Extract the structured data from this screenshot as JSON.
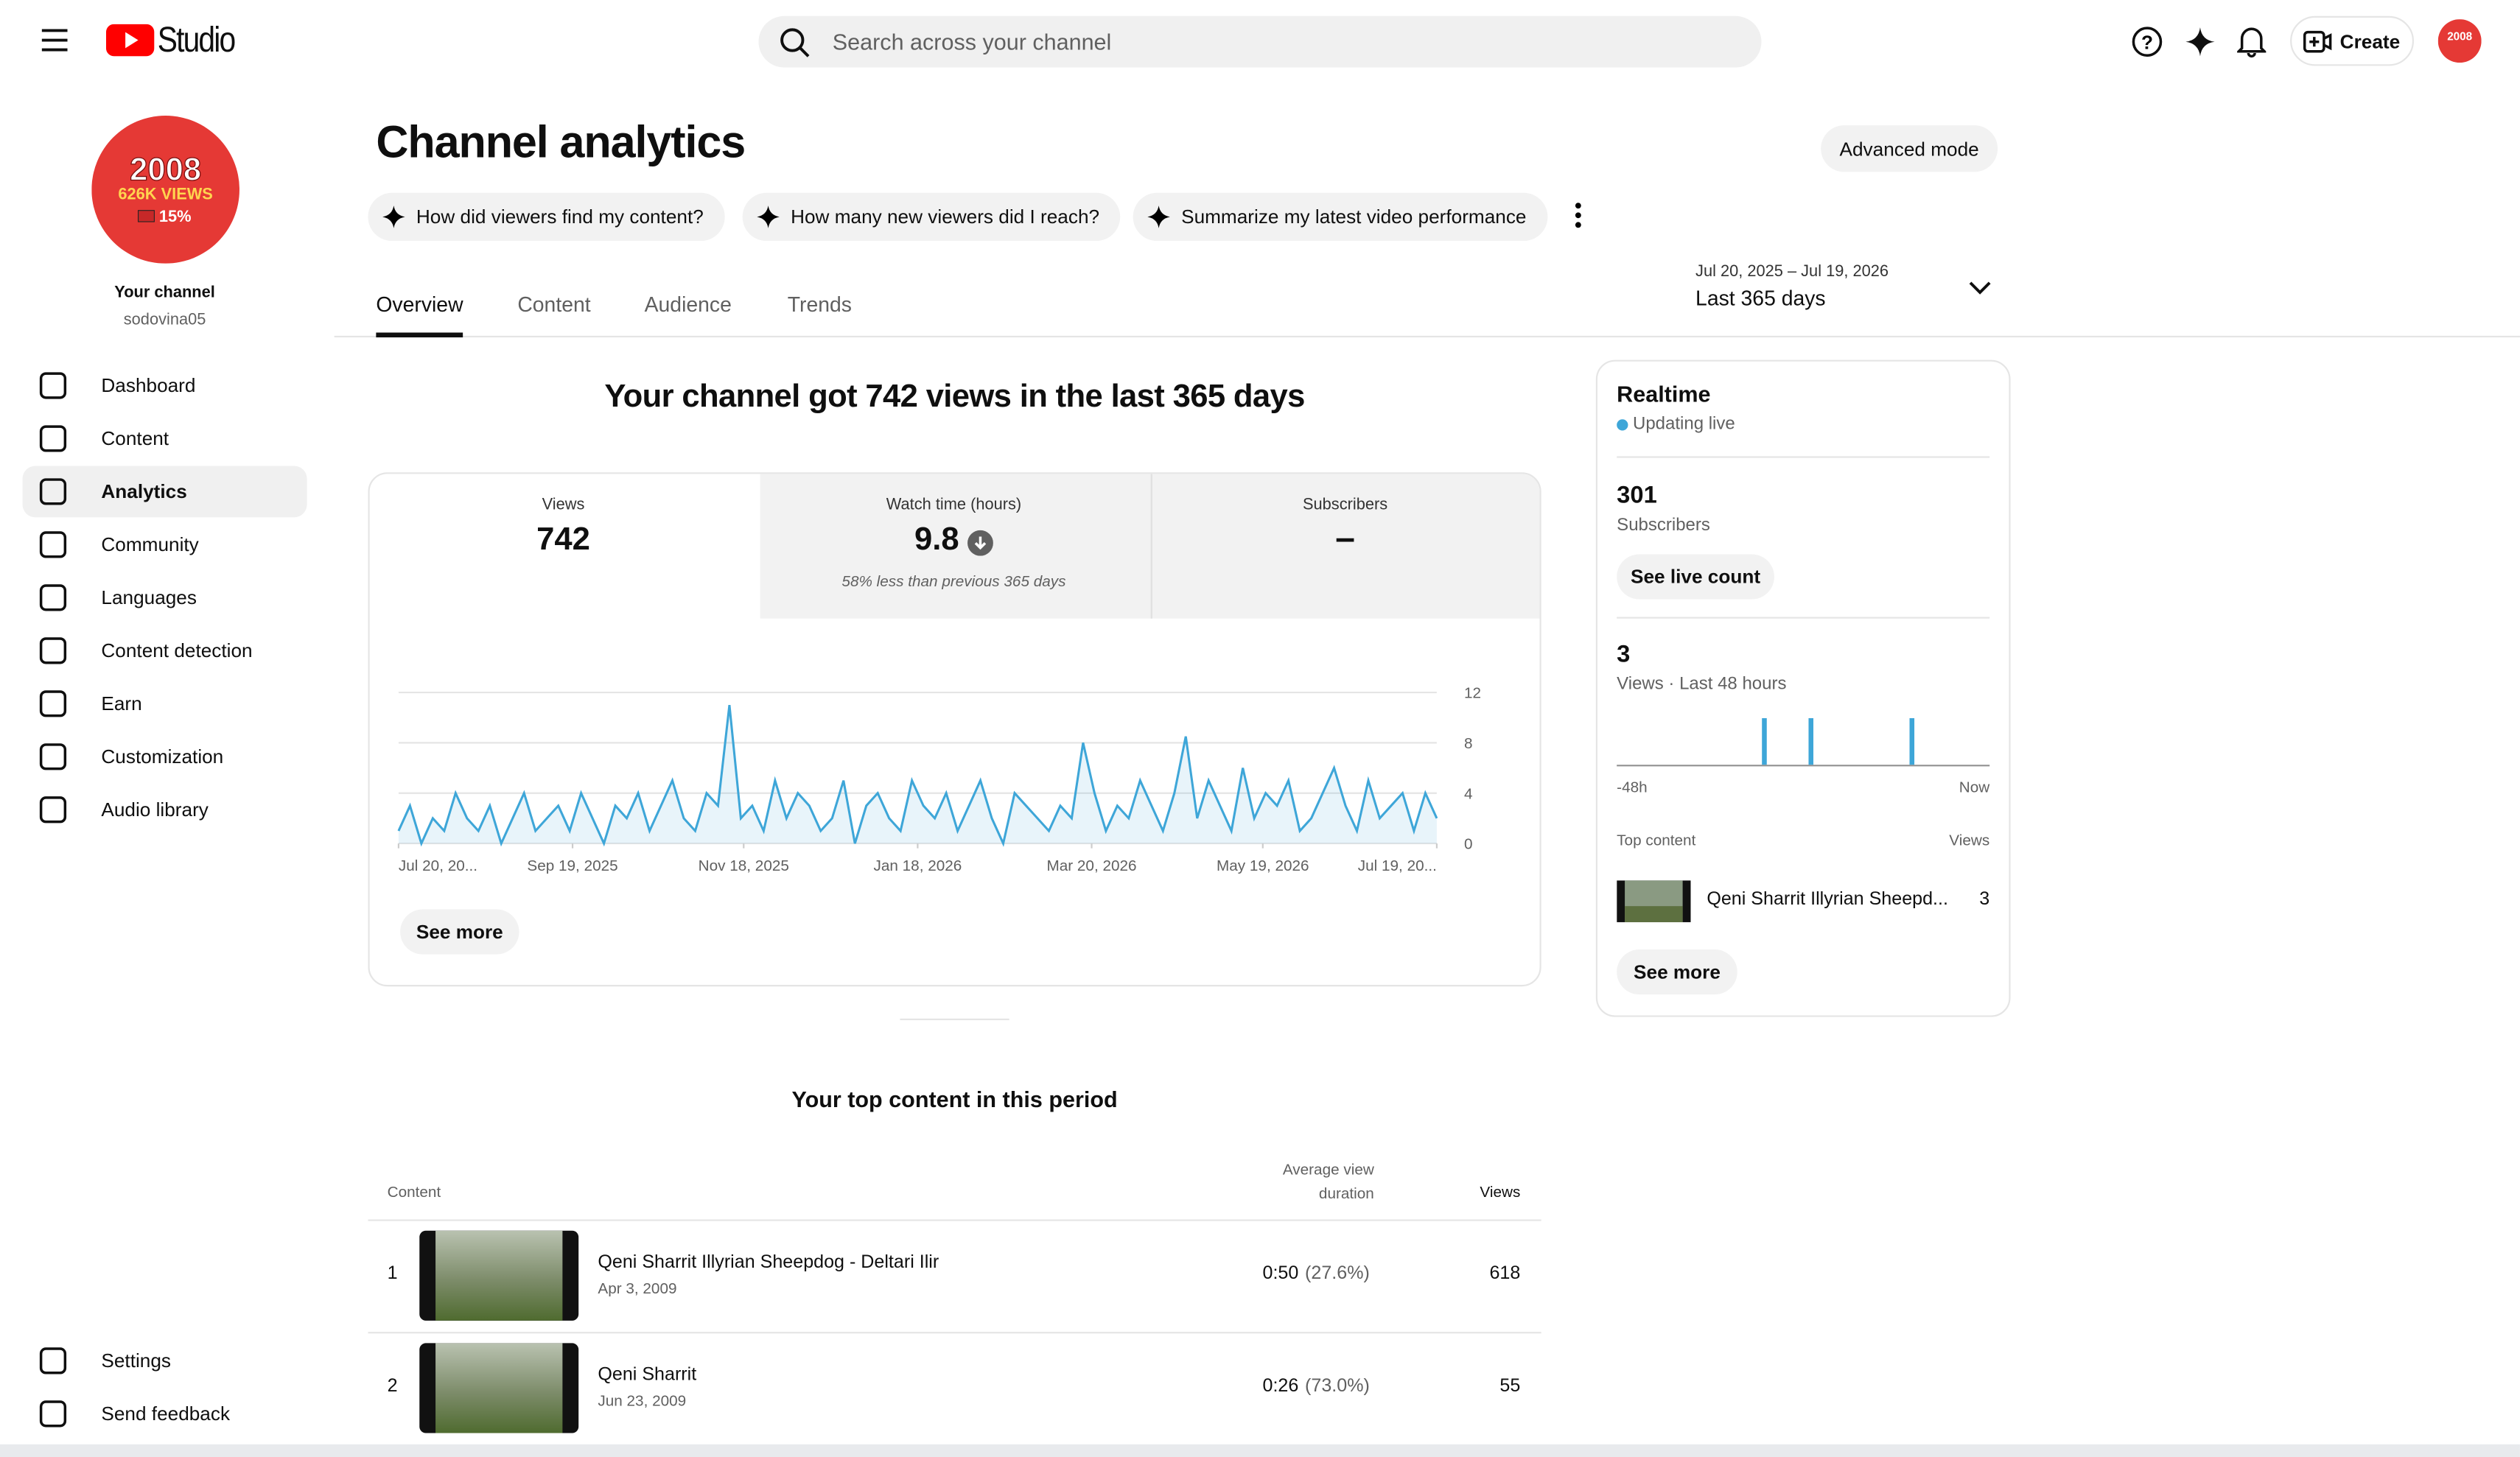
{
  "topbar": {
    "logo": "Studio",
    "search_placeholder": "Search across your channel",
    "create": "Create"
  },
  "sidebar": {
    "avatar": {
      "line1": "2008",
      "line2": "626K VIEWS",
      "line3": "15%"
    },
    "channel_label": "Your channel",
    "handle": "sodovina05",
    "nav": [
      "Dashboard",
      "Content",
      "Analytics",
      "Community",
      "Languages",
      "Content detection",
      "Earn",
      "Customization",
      "Audio library"
    ],
    "footer": [
      "Settings",
      "Send feedback"
    ]
  },
  "header": {
    "title": "Channel analytics",
    "advanced": "Advanced mode",
    "prompts": [
      "How did viewers find my content?",
      "How many new viewers did I reach?",
      "Summarize my latest video performance"
    ],
    "date_range": "Jul 20, 2025 – Jul 19, 2026",
    "period": "Last 365 days",
    "tabs": [
      "Overview",
      "Content",
      "Audience",
      "Trends"
    ]
  },
  "overview": {
    "headline": "Your channel got 742 views in the last 365 days",
    "metrics": [
      {
        "label": "Views",
        "value": 742
      },
      {
        "label": "Watch time (hours)",
        "value": 9.8,
        "note": "58% less than previous 365 days"
      },
      {
        "label": "Subscribers",
        "value": "–"
      }
    ],
    "see_more": "See more"
  },
  "realtime": {
    "title": "Realtime",
    "status": "Updating live",
    "subscribers": {
      "value": 301,
      "label": "Subscribers",
      "button": "See live count"
    },
    "views": {
      "value": 3,
      "label": "Views · Last 48 hours"
    },
    "top_content_label": "Top content",
    "views_label": "Views",
    "top_item": {
      "title": "Qeni Sharrit Illyrian Sheepd...",
      "views": 3
    },
    "see_more": "See more"
  },
  "top_content": {
    "title": "Your top content in this period",
    "columns": [
      "Content",
      "Average view duration",
      "Views"
    ],
    "rows": [
      {
        "rank": 1,
        "title": "Qeni Sharrit Illyrian Sheepdog - Deltari Ilir",
        "date": "Apr 3, 2009",
        "duration": "0:50",
        "percent": "(27.6%)",
        "views": 618
      },
      {
        "rank": 2,
        "title": "Qeni Sharrit",
        "date": "Jun 23, 2009",
        "duration": "0:26",
        "percent": "(73.0%)",
        "views": 55
      }
    ]
  },
  "chart_data": [
    {
      "type": "line",
      "color": "#3ea6d8",
      "grid": true,
      "values": [
        1,
        3,
        0,
        2,
        1,
        4,
        2,
        1,
        3,
        0,
        2,
        4,
        1,
        2,
        3,
        1,
        4,
        2,
        0,
        3,
        2,
        4,
        1,
        3,
        5,
        2,
        1,
        4,
        3,
        11,
        2,
        3,
        1,
        5,
        2,
        4,
        3,
        1,
        2,
        5,
        0,
        3,
        4,
        2,
        1,
        5,
        3,
        2,
        4,
        1,
        3,
        5,
        2,
        0,
        4,
        3,
        2,
        1,
        3,
        2,
        8,
        4,
        1,
        3,
        2,
        5,
        3,
        1,
        4,
        8.5,
        2,
        5,
        3,
        1,
        6,
        2,
        4,
        3,
        5,
        1,
        2,
        4,
        6,
        3,
        1,
        5,
        2,
        3,
        4,
        1,
        4,
        2
      ],
      "xlim": [
        0,
        91
      ],
      "xticks": [
        {
          "value": 0,
          "label": "Jul 20, 20..."
        },
        {
          "value": 15.25,
          "label": "Sep 19, 2025"
        },
        {
          "value": 30.25,
          "label": "Nov 18, 2025"
        },
        {
          "value": 45.5,
          "label": "Jan 18, 2026"
        },
        {
          "value": 60.75,
          "label": "Mar 20, 2026"
        },
        {
          "value": 75.75,
          "label": "May 19, 2026"
        },
        {
          "value": 91,
          "label": "Jul 19, 20..."
        }
      ],
      "ylim": [
        0,
        12
      ],
      "yticks": [
        0,
        4,
        8,
        12
      ]
    },
    {
      "type": "bar",
      "color": "#3ea6d8",
      "x": [
        -29,
        -23,
        -10
      ],
      "values": [
        1,
        1,
        1
      ],
      "xlim": [
        -48,
        0
      ],
      "xticks": [
        {
          "value": -48,
          "label": "-48h"
        },
        {
          "value": 0,
          "label": "Now"
        }
      ],
      "ylim": [
        0,
        1
      ]
    }
  ]
}
